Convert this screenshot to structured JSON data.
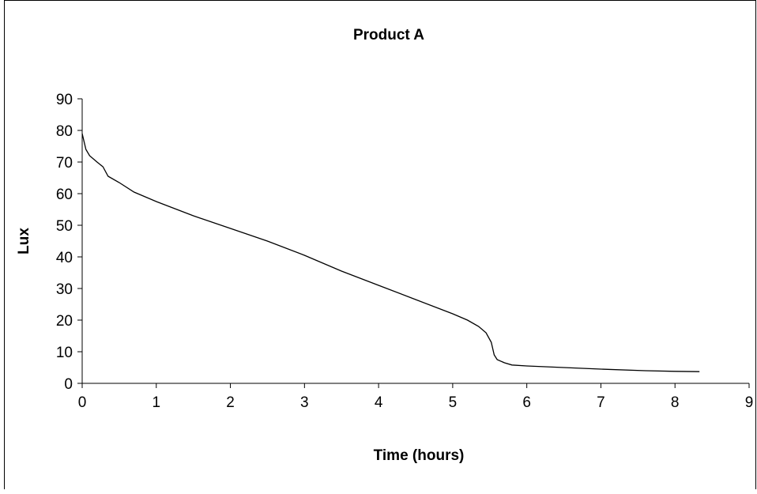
{
  "chart_data": {
    "type": "line",
    "title": "Product A",
    "xlabel": "Time (hours)",
    "ylabel": "Lux",
    "xlim": [
      0,
      9
    ],
    "ylim": [
      0,
      90
    ],
    "x_ticks": [
      "0",
      "1",
      "2",
      "3",
      "4",
      "5",
      "6",
      "7",
      "8",
      "9"
    ],
    "y_ticks": [
      "0",
      "10",
      "20",
      "30",
      "40",
      "50",
      "60",
      "70",
      "80",
      "90"
    ],
    "grid": false,
    "legend": "none",
    "line_color": "#000000",
    "series": [
      {
        "x": [
          0,
          0.05,
          0.1,
          0.2,
          0.28,
          0.35,
          0.5,
          0.7,
          1.0,
          1.5,
          2.0,
          2.5,
          3.0,
          3.5,
          4.0,
          4.5,
          5.0,
          5.2,
          5.35,
          5.45,
          5.52,
          5.56,
          5.6,
          5.7,
          5.8,
          6.0,
          6.5,
          7.0,
          7.6,
          8.0,
          8.33
        ],
        "y": [
          79,
          74,
          72,
          70,
          68.5,
          65.5,
          63.5,
          60.5,
          57.5,
          53,
          49,
          45,
          40.5,
          35.5,
          31,
          26.5,
          22,
          20,
          18,
          16,
          13,
          9,
          7.5,
          6.5,
          5.8,
          5.5,
          5.0,
          4.5,
          4.0,
          3.8,
          3.7
        ]
      }
    ]
  }
}
